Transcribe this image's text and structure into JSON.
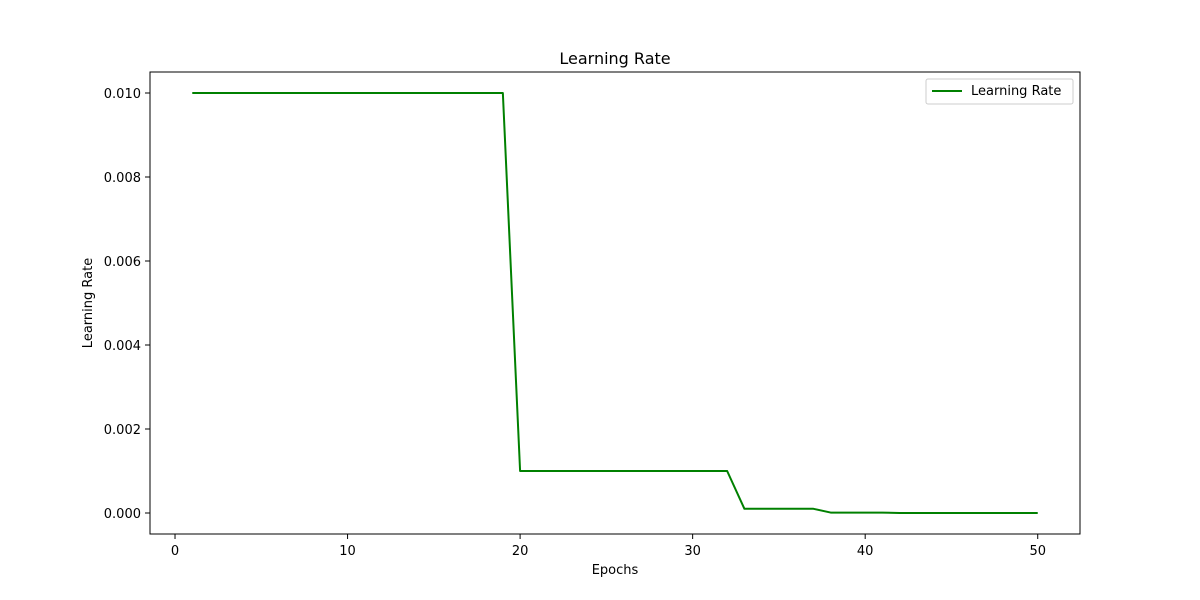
{
  "chart_data": {
    "type": "line",
    "title": "Learning Rate",
    "xlabel": "Epochs",
    "ylabel": "Learning Rate",
    "xlim": [
      -1.45,
      52.45
    ],
    "ylim": [
      -0.0005,
      0.0105
    ],
    "xticks": [
      0,
      10,
      20,
      30,
      40,
      50
    ],
    "xtick_labels": [
      "0",
      "10",
      "20",
      "30",
      "40",
      "50"
    ],
    "yticks": [
      0.0,
      0.002,
      0.004,
      0.006,
      0.008,
      0.01
    ],
    "ytick_labels": [
      "0.000",
      "0.002",
      "0.004",
      "0.006",
      "0.008",
      "0.010"
    ],
    "grid": false,
    "legend_position": "top-right",
    "series": [
      {
        "name": "Learning Rate",
        "color": "#008000",
        "x": [
          1,
          2,
          3,
          4,
          5,
          6,
          7,
          8,
          9,
          10,
          11,
          12,
          13,
          14,
          15,
          16,
          17,
          18,
          19,
          20,
          21,
          22,
          23,
          24,
          25,
          26,
          27,
          28,
          29,
          30,
          31,
          32,
          33,
          34,
          35,
          36,
          37,
          38,
          39,
          40,
          41,
          42,
          43,
          44,
          45,
          46,
          47,
          48,
          49,
          50
        ],
        "values": [
          0.01,
          0.01,
          0.01,
          0.01,
          0.01,
          0.01,
          0.01,
          0.01,
          0.01,
          0.01,
          0.01,
          0.01,
          0.01,
          0.01,
          0.01,
          0.01,
          0.01,
          0.01,
          0.01,
          0.001,
          0.001,
          0.001,
          0.001,
          0.001,
          0.001,
          0.001,
          0.001,
          0.001,
          0.001,
          0.001,
          0.001,
          0.001,
          0.0001,
          0.0001,
          0.0001,
          0.0001,
          0.0001,
          1e-05,
          1e-05,
          1e-05,
          1e-05,
          1e-06,
          1e-06,
          1e-06,
          1e-06,
          1e-06,
          1e-06,
          1e-06,
          1e-06,
          1e-06
        ]
      }
    ]
  }
}
